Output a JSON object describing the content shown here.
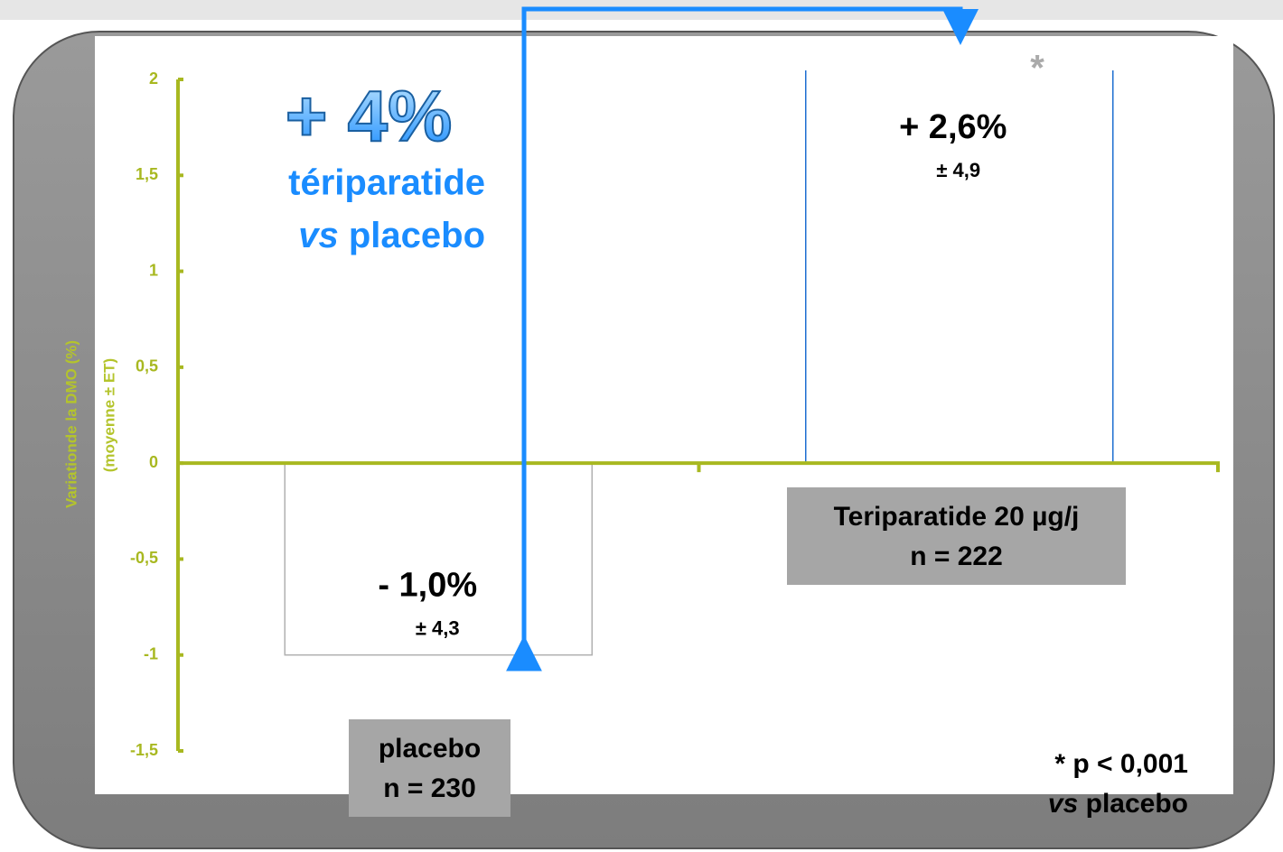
{
  "chart_data": {
    "type": "bar",
    "y_label_lines": [
      "Variationde la DMO (%)",
      "(moyenne ± ET)"
    ],
    "categories": [
      "placebo",
      "Teriparatide 20 µg/j"
    ],
    "n_labels": [
      "n = 230",
      "n = 222"
    ],
    "values": [
      -1.0,
      2.6
    ],
    "value_labels": [
      "- 1,0%",
      "+ 2,6%"
    ],
    "error_labels": [
      "± 4,3",
      "± 4,9"
    ],
    "colors": [
      "#b0b0b0",
      "#1f6fd1"
    ],
    "ylim": [
      -1.5,
      2
    ],
    "yticks": [
      {
        "value": -1.5,
        "label": "-1,5"
      },
      -1,
      {
        "value": -0.5,
        "label": "-0,5"
      },
      0,
      {
        "value": 0.5,
        "label": "0,5"
      },
      1,
      {
        "value": 1.5,
        "label": "1,5"
      },
      2
    ],
    "difference": {
      "value_label": "+ 4%",
      "line1": "tériparatide",
      "line2_italic": "vs",
      "line2": "placebo"
    },
    "significance_marker": "*",
    "footnote": {
      "line1": "* p < 0,001",
      "line2_italic": "vs",
      "line2": "placebo"
    }
  }
}
